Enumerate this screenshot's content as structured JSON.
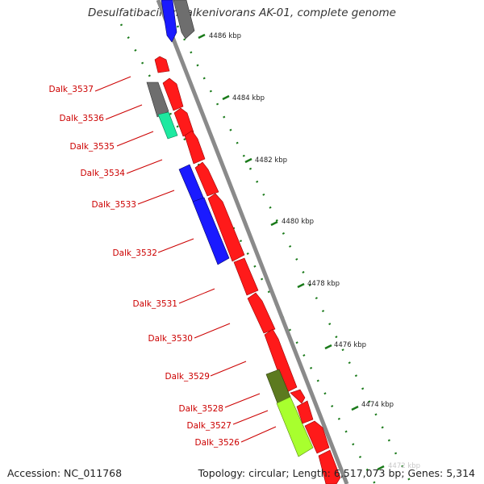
{
  "title": "Desulfatibacillum alkenivorans AK-01, complete genome",
  "accession": "Accession: NC_011768",
  "summary": "Topology: circular; Length: 6,517,073 bp; Genes: 5,314",
  "colors": {
    "red": "#ff1a1a",
    "blue": "#1a1aff",
    "gray": "#6e6e6e",
    "teal": "#1de9a0",
    "olive": "#5c7a1f",
    "lime": "#a8ff2e",
    "label_red": "#cc0000",
    "tick_green": "#1a7a1a",
    "backbone": "#8a8a8a"
  },
  "ticks": [
    "4486 kbp",
    "4484 kbp",
    "4482 kbp",
    "4480 kbp",
    "4478 kbp",
    "4476 kbp",
    "4474 kbp",
    "4472 kbp"
  ],
  "gene_labels": [
    "Dalk_3537",
    "Dalk_3536",
    "Dalk_3535",
    "Dalk_3534",
    "Dalk_3533",
    "Dalk_3532",
    "Dalk_3531",
    "Dalk_3530",
    "Dalk_3529",
    "Dalk_3528",
    "Dalk_3527",
    "Dalk_3526"
  ]
}
